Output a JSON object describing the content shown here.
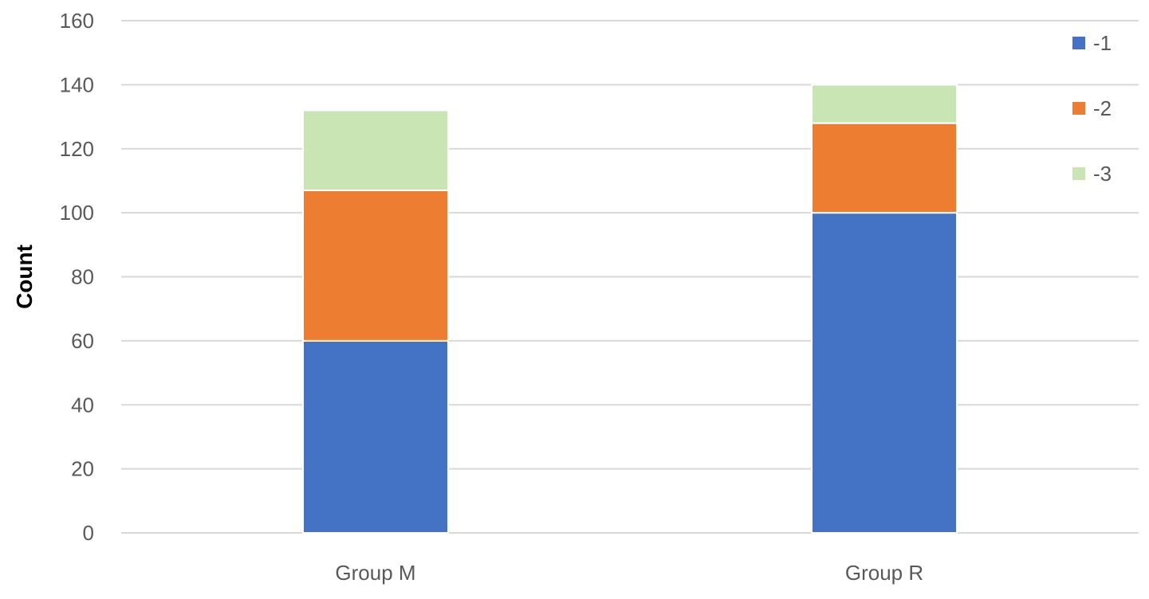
{
  "chart_data": {
    "type": "bar",
    "stacked": true,
    "title": "",
    "xlabel": "",
    "ylabel": "Count",
    "ylim": [
      0,
      160
    ],
    "yticks": [
      0,
      20,
      40,
      60,
      80,
      100,
      120,
      140,
      160
    ],
    "ytick_labels": [
      "0",
      "20",
      "40",
      "60",
      "80",
      "100",
      "120",
      "140",
      "160"
    ],
    "categories": [
      "Group M",
      "Group R"
    ],
    "series": [
      {
        "name": "-1",
        "color": "#4472C4",
        "values": [
          60,
          100
        ]
      },
      {
        "name": "-2",
        "color": "#ED7D31",
        "values": [
          47,
          28
        ]
      },
      {
        "name": "-3",
        "color": "#C9E5B4",
        "values": [
          25,
          12
        ]
      }
    ],
    "grid": true,
    "legend_position": "top-right"
  }
}
